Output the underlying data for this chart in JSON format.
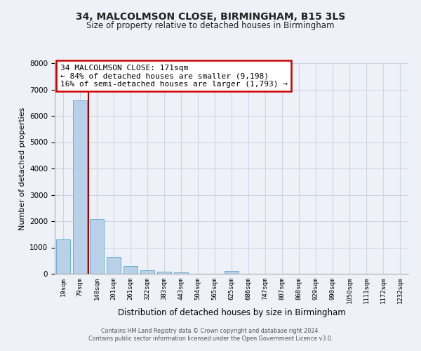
{
  "title_line1": "34, MALCOLMSON CLOSE, BIRMINGHAM, B15 3LS",
  "title_line2": "Size of property relative to detached houses in Birmingham",
  "xlabel": "Distribution of detached houses by size in Birmingham",
  "ylabel": "Number of detached properties",
  "categories": [
    "19sqm",
    "79sqm",
    "140sqm",
    "201sqm",
    "261sqm",
    "322sqm",
    "383sqm",
    "443sqm",
    "504sqm",
    "565sqm",
    "625sqm",
    "686sqm",
    "747sqm",
    "807sqm",
    "868sqm",
    "929sqm",
    "990sqm",
    "1050sqm",
    "1111sqm",
    "1172sqm",
    "1232sqm"
  ],
  "values": [
    1320,
    6600,
    2080,
    650,
    300,
    140,
    80,
    60,
    0,
    0,
    100,
    0,
    0,
    0,
    0,
    0,
    0,
    0,
    0,
    0,
    0
  ],
  "bar_color": "#b8d0e8",
  "bar_edge_color": "#6aafd4",
  "property_line_color": "#aa0000",
  "annotation_box_text": "34 MALCOLMSON CLOSE: 171sqm\n← 84% of detached houses are smaller (9,198)\n16% of semi-detached houses are larger (1,793) →",
  "annotation_box_color": "#ffffff",
  "annotation_box_edge_color": "#cc0000",
  "ylim": [
    0,
    8000
  ],
  "yticks": [
    0,
    1000,
    2000,
    3000,
    4000,
    5000,
    6000,
    7000,
    8000
  ],
  "grid_color": "#cdd5e5",
  "background_color": "#eef2f8",
  "footer_line1": "Contains HM Land Registry data © Crown copyright and database right 2024.",
  "footer_line2": "Contains public sector information licensed under the Open Government Licence v3.0."
}
